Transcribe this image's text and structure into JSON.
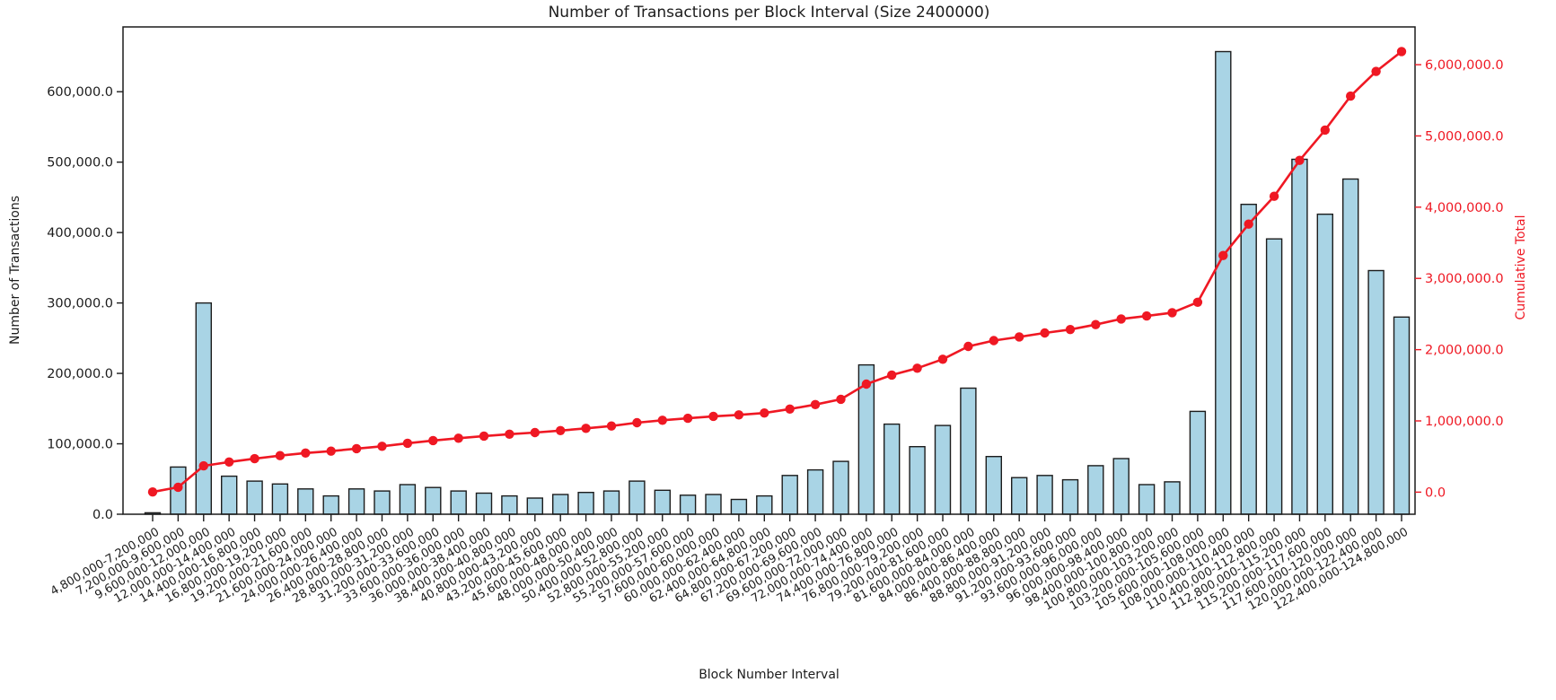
{
  "figure": {
    "title": "Number of Transactions per Block Interval (Size 2400000)",
    "xlabel": "Block Number Interval",
    "ylabel_left": "Number of Transactions",
    "ylabel_right": "Cumulative Total"
  },
  "colors": {
    "background": "#ffffff",
    "bar_fill": "#a9d4e5",
    "bar_edge": "#1c1c1c",
    "line": "#ef1823",
    "axis": "#1c1c1c",
    "text": "#1c1c1c",
    "right_text": "#ef1823"
  },
  "chart_data": {
    "type": "bar",
    "title": "Number of Transactions per Block Interval (Size 2400000)",
    "xlabel": "Block Number Interval",
    "ylabel_left": "Number of Transactions",
    "ylabel_right": "Cumulative Total",
    "grid": false,
    "legend": "none",
    "categories": [
      "4,800,000-7,200,000",
      "7,200,000-9,600,000",
      "9,600,000-12,000,000",
      "12,000,000-14,400,000",
      "14,400,000-16,800,000",
      "16,800,000-19,200,000",
      "19,200,000-21,600,000",
      "21,600,000-24,000,000",
      "24,000,000-26,400,000",
      "26,400,000-28,800,000",
      "28,800,000-31,200,000",
      "31,200,000-33,600,000",
      "33,600,000-36,000,000",
      "36,000,000-38,400,000",
      "38,400,000-40,800,000",
      "40,800,000-43,200,000",
      "43,200,000-45,600,000",
      "45,600,000-48,000,000",
      "48,000,000-50,400,000",
      "50,400,000-52,800,000",
      "52,800,000-55,200,000",
      "55,200,000-57,600,000",
      "57,600,000-60,000,000",
      "60,000,000-62,400,000",
      "62,400,000-64,800,000",
      "64,800,000-67,200,000",
      "67,200,000-69,600,000",
      "69,600,000-72,000,000",
      "72,000,000-74,400,000",
      "74,400,000-76,800,000",
      "76,800,000-79,200,000",
      "79,200,000-81,600,000",
      "81,600,000-84,000,000",
      "84,000,000-86,400,000",
      "86,400,000-88,800,000",
      "88,800,000-91,200,000",
      "91,200,000-93,600,000",
      "93,600,000-96,000,000",
      "96,000,000-98,400,000",
      "98,400,000-100,800,000",
      "100,800,000-103,200,000",
      "103,200,000-105,600,000",
      "105,600,000-108,000,000",
      "108,000,000-110,400,000",
      "110,400,000-112,800,000",
      "112,800,000-115,200,000",
      "115,200,000-117,600,000",
      "117,600,000-120,000,000",
      "120,000,000-122,400,000",
      "122,400,000-124,800,000"
    ],
    "series": [
      {
        "name": "Number of Transactions",
        "type": "bar",
        "axis": "left",
        "values": [
          2000,
          67000,
          300000,
          54000,
          47000,
          43000,
          36000,
          26000,
          36000,
          33000,
          42000,
          38000,
          33000,
          30000,
          26000,
          23000,
          28000,
          31000,
          33000,
          47000,
          34000,
          27000,
          28000,
          21000,
          26000,
          55000,
          63000,
          75000,
          212000,
          128000,
          96000,
          126000,
          179000,
          82000,
          52000,
          55000,
          49000,
          69000,
          79000,
          42000,
          46000,
          146000,
          657000,
          440000,
          391000,
          504000,
          426000,
          476000,
          346000,
          280000
        ]
      },
      {
        "name": "Cumulative Total",
        "type": "line",
        "axis": "right",
        "values": [
          2000,
          69000,
          369000,
          423000,
          470000,
          513000,
          549000,
          575000,
          611000,
          644000,
          686000,
          724000,
          757000,
          787000,
          813000,
          836000,
          864000,
          895000,
          928000,
          975000,
          1009000,
          1036000,
          1064000,
          1085000,
          1111000,
          1166000,
          1229000,
          1304000,
          1516000,
          1644000,
          1740000,
          1866000,
          2045000,
          2127000,
          2179000,
          2234000,
          2283000,
          2352000,
          2431000,
          2473000,
          2519000,
          2665000,
          3322000,
          3762000,
          4153000,
          4657000,
          5083000,
          5559000,
          5905000,
          6185000
        ]
      }
    ],
    "y_left": {
      "lim": [
        0,
        692000
      ],
      "tick_values": [
        0,
        100000,
        200000,
        300000,
        400000,
        500000,
        600000
      ],
      "tick_labels": [
        "0.0",
        "100,000.0",
        "200,000.0",
        "300,000.0",
        "400,000.0",
        "500,000.0",
        "600,000.0"
      ]
    },
    "y_right": {
      "lim": [
        -310000,
        6530000
      ],
      "tick_values": [
        0,
        1000000,
        2000000,
        3000000,
        4000000,
        5000000,
        6000000
      ],
      "tick_labels": [
        "0.0",
        "1,000,000.0",
        "2,000,000.0",
        "3,000,000.0",
        "4,000,000.0",
        "5,000,000.0",
        "6,000,000.0"
      ]
    },
    "x_tick_rotation_deg": 30
  }
}
